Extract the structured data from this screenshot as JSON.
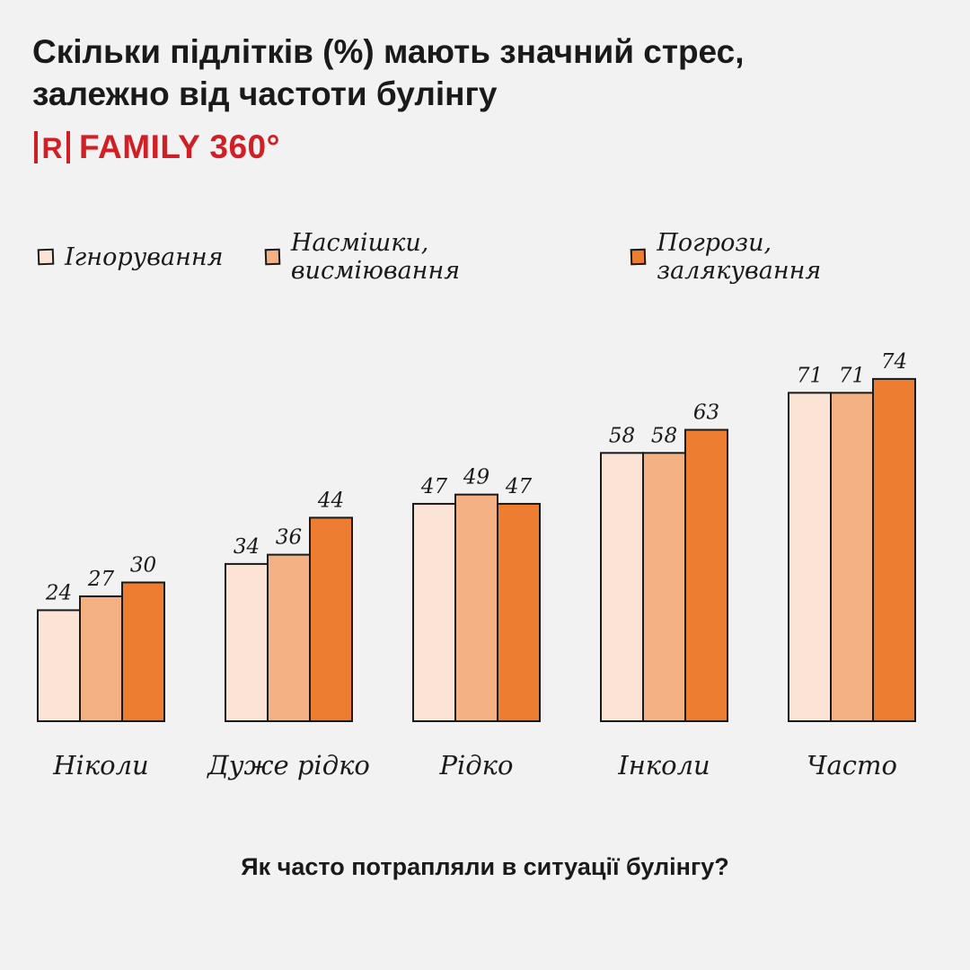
{
  "header": {
    "title_line1": "Скільки підлітків (%) мають значний стрес,",
    "title_line2": "залежно від частоти булінгу",
    "brand_name": "FAMILY 360°",
    "brand_logo_letter": "R",
    "brand_color": "#d21f26"
  },
  "chart_data": {
    "type": "bar",
    "title": "Скільки підлітків (%) мають значний стрес, залежно від частоти булінгу",
    "xlabel": "Як часто потрапляли в ситуації булінгу?",
    "ylabel": "",
    "ylim": [
      0,
      80
    ],
    "grid": false,
    "legend_position": "top-left",
    "categories": [
      "Ніколи",
      "Дуже рідко",
      "Рідко",
      "Інколи",
      "Часто"
    ],
    "series": [
      {
        "name": "Ігнорування",
        "color": "#fbe3d6",
        "values": [
          24,
          34,
          47,
          58,
          71
        ]
      },
      {
        "name": "Насмішки, висміювання",
        "color": "#f4b183",
        "values": [
          27,
          36,
          49,
          58,
          71
        ]
      },
      {
        "name": "Погрози, залякування",
        "color": "#ed7d31",
        "values": [
          30,
          44,
          47,
          63,
          74
        ]
      }
    ]
  }
}
